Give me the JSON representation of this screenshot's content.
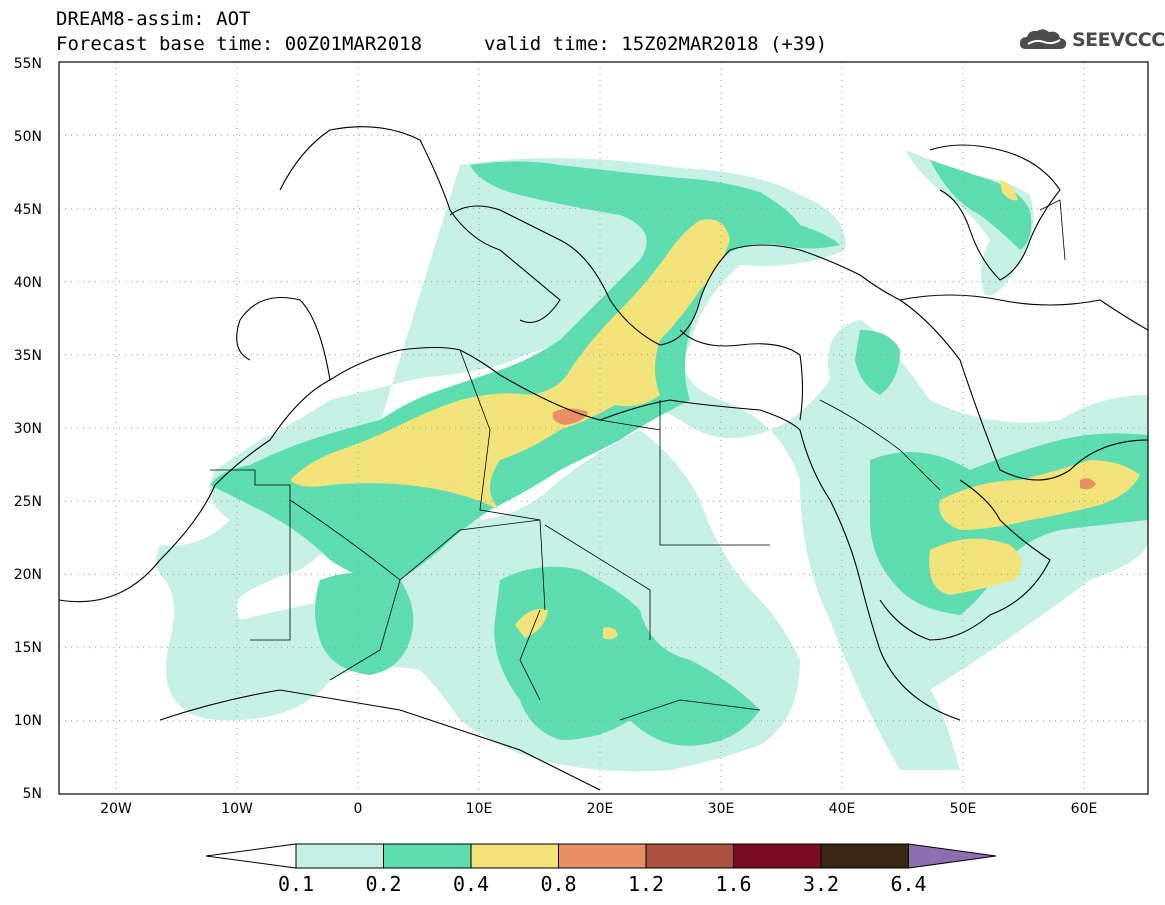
{
  "header": {
    "title": "DREAM8-assim: AOT",
    "base_time": "Forecast base time: 00Z01MAR2018",
    "valid_time": "valid time: 15Z02MAR2018 (+39)",
    "logo_text": "SEEVCCC",
    "logo_icon": "cloud-icon"
  },
  "map": {
    "lat_labels": [
      "55N",
      "50N",
      "45N",
      "40N",
      "35N",
      "30N",
      "25N",
      "20N",
      "15N",
      "10N",
      "5N"
    ],
    "lon_labels": [
      "20W",
      "10W",
      "0",
      "10E",
      "20E",
      "30E",
      "40E",
      "50E",
      "60E"
    ],
    "grid": "dotted"
  },
  "colorbar": {
    "labels": [
      "0.1",
      "0.2",
      "0.4",
      "0.8",
      "1.2",
      "1.6",
      "3.2",
      "6.4"
    ],
    "colors": [
      "#ffffff",
      "#c6efe6",
      "#5ddcb0",
      "#f2e27a",
      "#e98f66",
      "#a9503f",
      "#7a0b22",
      "#3a2813",
      "#8b6fb0"
    ]
  }
}
